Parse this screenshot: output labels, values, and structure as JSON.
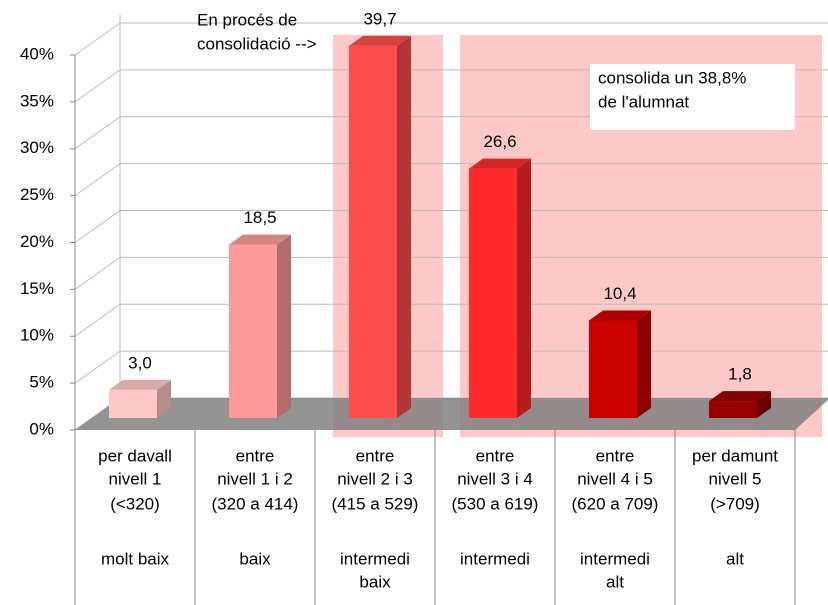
{
  "chart_data": {
    "type": "bar3d",
    "categories": [
      [
        "per davall",
        "nivell 1",
        "(<320)",
        "molt baix"
      ],
      [
        "entre",
        "nivell 1 i 2",
        "(320 a 414)",
        "baix"
      ],
      [
        "entre",
        "nivell 2 i 3",
        "(415 a 529)",
        "intermedi",
        "baix"
      ],
      [
        "entre",
        "nivell 3 i 4",
        "(530 a 619)",
        "intermedi"
      ],
      [
        "entre",
        "nivell 4 i 5",
        "(620 a 709)",
        "intermedi",
        "alt"
      ],
      [
        "per damunt",
        "nivell 5",
        "(>709)",
        "alt"
      ]
    ],
    "values": [
      3.0,
      18.5,
      39.7,
      26.6,
      10.4,
      1.8
    ],
    "value_labels": [
      "3,0",
      "18,5",
      "39,7",
      "26,6",
      "10,4",
      "1,8"
    ],
    "colors": [
      "#ffc8c8",
      "#ff9999",
      "#ff4d4d",
      "#ff2a2a",
      "#cc0000",
      "#990000"
    ],
    "ylim": [
      0,
      40
    ],
    "yticks": [
      {
        "value": 0,
        "label": "0%"
      },
      {
        "value": 5,
        "label": "5%"
      },
      {
        "value": 10,
        "label": "10%"
      },
      {
        "value": 15,
        "label": "15%"
      },
      {
        "value": 20,
        "label": "20%"
      },
      {
        "value": 25,
        "label": "25%"
      },
      {
        "value": 30,
        "label": "30%"
      },
      {
        "value": 35,
        "label": "35%"
      },
      {
        "value": 40,
        "label": "40%"
      }
    ],
    "grid": true,
    "annotations": [
      [
        "En procés de",
        "consolidació -->"
      ],
      [
        "consolida un 38,8%",
        "de l'alumnat"
      ]
    ]
  }
}
